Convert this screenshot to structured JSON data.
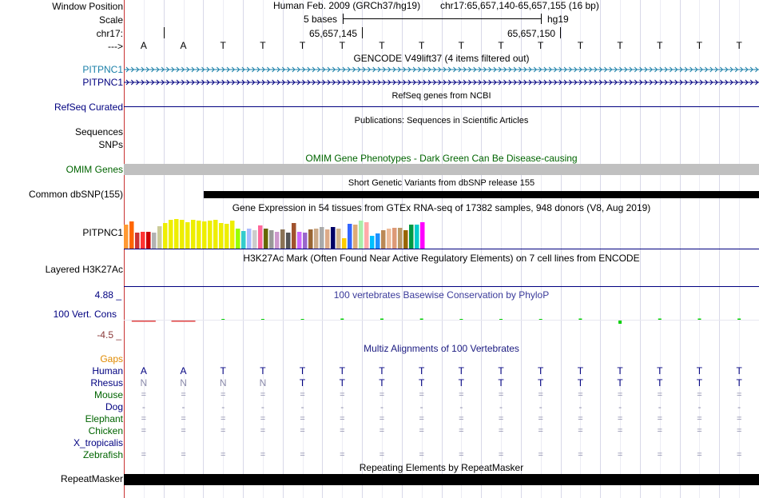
{
  "header": {
    "window_label": "Window Position",
    "assembly": "Human Feb. 2009 (GRCh37/hg19)",
    "position": "chr17:65,657,140-65,657,155 (16 bp)",
    "scale_label": "Scale",
    "scale_text": "5 bases",
    "scale_db": "hg19",
    "chrom_label": "chr17:",
    "coord1": "65,657,145",
    "coord2": "65,657,150",
    "strand_label": "--->"
  },
  "bases": [
    "A",
    "A",
    "T",
    "T",
    "T",
    "T",
    "T",
    "T",
    "T",
    "T",
    "T",
    "T",
    "T",
    "T",
    "T",
    "T"
  ],
  "gencode": {
    "title": "GENCODE V49lift37 (4 items filtered out)",
    "rows": [
      {
        "label": "PITPNC1",
        "color": "#1a7fa8"
      },
      {
        "label": "PITPNC1",
        "color": "#000080"
      }
    ]
  },
  "refseq": {
    "label": "RefSeq Curated",
    "title": "RefSeq genes from NCBI"
  },
  "publications": {
    "title": "Publications: Sequences in Scientific Articles",
    "labels": [
      "Sequences",
      "SNPs"
    ]
  },
  "omim": {
    "title": "OMIM Gene Phenotypes - Dark Green Can Be Disease-causing",
    "label": "OMIM Genes"
  },
  "dbsnp": {
    "title": "Short Genetic Variants from dbSNP release 155",
    "label": "Common dbSNP(155)"
  },
  "gtex": {
    "title": "Gene Expression in 54 tissues from GTEx RNA-seq of 17382 samples, 948 donors (V8, Aug 2019)",
    "label": "PITPNC1",
    "values": [
      0.88,
      1.0,
      0.58,
      0.62,
      0.62,
      0.57,
      0.83,
      0.92,
      1.05,
      1.08,
      1.05,
      0.97,
      1.05,
      1.03,
      1.0,
      1.02,
      1.05,
      0.92,
      0.9,
      1.02,
      0.73,
      0.65,
      0.72,
      0.67,
      0.85,
      0.72,
      0.67,
      0.6,
      0.7,
      0.58,
      0.92,
      0.6,
      0.57,
      0.7,
      0.72,
      0.8,
      0.7,
      0.8,
      0.72,
      0.37,
      0.9,
      0.88,
      1.02,
      0.97,
      0.48,
      0.55,
      0.67,
      0.72,
      0.77,
      0.75,
      0.67,
      0.88,
      0.88,
      0.95
    ],
    "colors": [
      "#ff9933",
      "#ff6600",
      "#cc3333",
      "#ff3333",
      "#cc0000",
      "#b2b2b2",
      "#cccc99",
      "#eeee00",
      "#eeee00",
      "#eeee00",
      "#eeee00",
      "#eeee00",
      "#eeee00",
      "#eeee00",
      "#eeee00",
      "#eeee00",
      "#eeee00",
      "#eeee00",
      "#eeee00",
      "#eeee00",
      "#99ff00",
      "#33cccc",
      "#aabbff",
      "#cccccc",
      "#ff6699",
      "#666600",
      "#999999",
      "#cc99cc",
      "#8b7355",
      "#555555",
      "#a0522d",
      "#cc66ff",
      "#9966cc",
      "#996633",
      "#ccaa88",
      "#aaaaaa",
      "#ddaa88",
      "#000066",
      "#d2b48c",
      "#ffcc00",
      "#3366ff",
      "#ddaa77",
      "#aaeeaa",
      "#ffaaaa",
      "#00bfff",
      "#1e90ff",
      "#bb8855",
      "#eebb99",
      "#dd9977",
      "#bb9966",
      "#996600",
      "#009944",
      "#00cccc",
      "#ff00ff"
    ]
  },
  "h3k27ac": {
    "title": "H3K27Ac Mark (Often Found Near Active Regulatory Elements) on 7 cell lines from ENCODE",
    "label": "Layered H3K27Ac"
  },
  "phylop": {
    "title": "100 vertebrates Basewise Conservation by PhyloP",
    "label": "100 Vert. Cons",
    "max": "4.88 _",
    "min": "-4.5 _"
  },
  "multiz": {
    "title": "Multiz Alignments of 100 Vertebrates",
    "gaps_label": "Gaps",
    "species": [
      {
        "name": "Human",
        "color": "#000080",
        "bases": [
          "A",
          "A",
          "T",
          "T",
          "T",
          "T",
          "T",
          "T",
          "T",
          "T",
          "T",
          "T",
          "T",
          "T",
          "T",
          "T"
        ]
      },
      {
        "name": "Rhesus",
        "color": "#000080",
        "bases": [
          "N",
          "N",
          "N",
          "N",
          "T",
          "T",
          "T",
          "T",
          "T",
          "T",
          "T",
          "T",
          "T",
          "T",
          "T",
          "T"
        ]
      },
      {
        "name": "Mouse",
        "color": "#006400",
        "bases": [
          "=",
          "=",
          "=",
          "=",
          "=",
          "=",
          "=",
          "=",
          "=",
          "=",
          "=",
          "=",
          "=",
          "=",
          "=",
          "="
        ]
      },
      {
        "name": "Dog",
        "color": "#000080",
        "bases": [
          "-",
          "-",
          "-",
          "-",
          "-",
          "-",
          "-",
          "-",
          "-",
          "-",
          "-",
          "-",
          "-",
          "-",
          "-",
          "-"
        ]
      },
      {
        "name": "Elephant",
        "color": "#006400",
        "bases": [
          "=",
          "=",
          "=",
          "=",
          "=",
          "=",
          "=",
          "=",
          "=",
          "=",
          "=",
          "=",
          "=",
          "=",
          "=",
          "="
        ]
      },
      {
        "name": "Chicken",
        "color": "#006400",
        "bases": [
          "=",
          "=",
          "=",
          "=",
          "=",
          "=",
          "=",
          "=",
          "=",
          "=",
          "=",
          "=",
          "=",
          "=",
          "=",
          "="
        ]
      },
      {
        "name": "X_tropicalis",
        "color": "#000080",
        "bases": [
          "",
          "",
          "",
          "",
          "",
          "",
          "",
          "",
          "",
          "",
          "",
          "",
          "",
          "",
          "",
          ""
        ]
      },
      {
        "name": "Zebrafish",
        "color": "#006400",
        "bases": [
          "=",
          "=",
          "=",
          "=",
          "=",
          "=",
          "=",
          "=",
          "=",
          "=",
          "=",
          "=",
          "=",
          "=",
          "=",
          "="
        ]
      }
    ]
  },
  "repeatmasker": {
    "title": "Repeating Elements by RepeatMasker",
    "label": "RepeatMasker"
  },
  "colors": {
    "grid": "#d8d8e8",
    "navy": "#000080",
    "omim_bar": "#c0c0c0",
    "phylop_pos": "#00d000",
    "phylop_neg": "#e04040",
    "rest_gray": "#8a8aaa"
  }
}
